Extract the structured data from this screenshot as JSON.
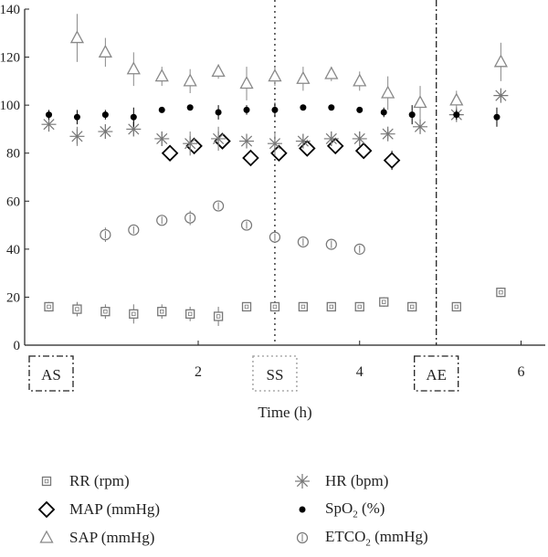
{
  "chart_data": {
    "type": "scatter",
    "xlabel": "Time (h)",
    "ylabel": "",
    "xlim": [
      -0.15,
      6.3
    ],
    "ylim": [
      0,
      140
    ],
    "y_ticks": [
      0,
      20,
      40,
      60,
      80,
      100,
      120,
      140
    ],
    "x_tick_labels": [
      {
        "x": 2,
        "label": "2"
      },
      {
        "x": 4,
        "label": "4"
      },
      {
        "x": 6,
        "label": "6"
      }
    ],
    "phase_markers": [
      {
        "label": "AS",
        "x": 0.0,
        "line": "none",
        "box": "dashdot"
      },
      {
        "label": "SS",
        "x": 2.95,
        "line": "dotted",
        "box": "dotted"
      },
      {
        "label": "AE",
        "x": 4.95,
        "line": "dashdot",
        "box": "dashdot"
      }
    ],
    "series": [
      {
        "name": "RR (rpm)",
        "name_main": "RR (rpm)",
        "name_sub": "",
        "name_tail": "",
        "marker": "square",
        "color": "#777777",
        "points": [
          {
            "x": 0.15,
            "y": 16,
            "err": 2
          },
          {
            "x": 0.5,
            "y": 15,
            "err": 3
          },
          {
            "x": 0.85,
            "y": 14,
            "err": 3
          },
          {
            "x": 1.2,
            "y": 13,
            "err": 4
          },
          {
            "x": 1.55,
            "y": 14,
            "err": 3
          },
          {
            "x": 1.9,
            "y": 13,
            "err": 3
          },
          {
            "x": 2.25,
            "y": 12,
            "err": 4
          },
          {
            "x": 2.6,
            "y": 16,
            "err": 1
          },
          {
            "x": 2.95,
            "y": 16,
            "err": 1
          },
          {
            "x": 3.3,
            "y": 16,
            "err": 1
          },
          {
            "x": 3.65,
            "y": 16,
            "err": 1
          },
          {
            "x": 4.0,
            "y": 16,
            "err": 1
          },
          {
            "x": 4.3,
            "y": 18,
            "err": 2
          },
          {
            "x": 4.65,
            "y": 16,
            "err": 2
          },
          {
            "x": 5.2,
            "y": 16,
            "err": 1
          },
          {
            "x": 5.75,
            "y": 22,
            "err": 2
          }
        ]
      },
      {
        "name": "MAP (mmHg)",
        "name_main": "MAP (mmHg)",
        "name_sub": "",
        "name_tail": "",
        "marker": "diamond",
        "color": "#000000",
        "points": [
          {
            "x": 1.65,
            "y": 80,
            "err": 0
          },
          {
            "x": 1.95,
            "y": 83,
            "err": 3
          },
          {
            "x": 2.3,
            "y": 85,
            "err": 3
          },
          {
            "x": 2.65,
            "y": 78,
            "err": 2
          },
          {
            "x": 3.0,
            "y": 80,
            "err": 2
          },
          {
            "x": 3.35,
            "y": 82,
            "err": 3
          },
          {
            "x": 3.7,
            "y": 83,
            "err": 2
          },
          {
            "x": 4.05,
            "y": 81,
            "err": 3
          },
          {
            "x": 4.4,
            "y": 77,
            "err": 4
          }
        ]
      },
      {
        "name": "SAP (mmHg)",
        "name_main": "SAP (mmHg)",
        "name_sub": "",
        "name_tail": "",
        "marker": "triangle",
        "color": "#888888",
        "points": [
          {
            "x": 0.5,
            "y": 128,
            "err": 10
          },
          {
            "x": 0.85,
            "y": 122,
            "err": 6
          },
          {
            "x": 1.2,
            "y": 115,
            "err": 7
          },
          {
            "x": 1.55,
            "y": 112,
            "err": 4
          },
          {
            "x": 1.9,
            "y": 110,
            "err": 5
          },
          {
            "x": 2.25,
            "y": 114,
            "err": 3
          },
          {
            "x": 2.6,
            "y": 109,
            "err": 7
          },
          {
            "x": 2.95,
            "y": 112,
            "err": 4
          },
          {
            "x": 3.3,
            "y": 111,
            "err": 5
          },
          {
            "x": 3.65,
            "y": 113,
            "err": 3
          },
          {
            "x": 4.0,
            "y": 110,
            "err": 4
          },
          {
            "x": 4.35,
            "y": 105,
            "err": 7
          },
          {
            "x": 4.75,
            "y": 101,
            "err": 7
          },
          {
            "x": 5.2,
            "y": 102,
            "err": 4
          },
          {
            "x": 5.75,
            "y": 118,
            "err": 8
          }
        ]
      },
      {
        "name": "HR (bpm)",
        "name_main": "HR (bpm)",
        "name_sub": "",
        "name_tail": "",
        "marker": "asterisk",
        "color": "#777777",
        "points": [
          {
            "x": 0.15,
            "y": 92,
            "err": 0
          },
          {
            "x": 0.5,
            "y": 87,
            "err": 4
          },
          {
            "x": 0.85,
            "y": 89,
            "err": 3
          },
          {
            "x": 1.2,
            "y": 90,
            "err": 3
          },
          {
            "x": 1.55,
            "y": 86,
            "err": 3
          },
          {
            "x": 1.9,
            "y": 84,
            "err": 5
          },
          {
            "x": 2.25,
            "y": 86,
            "err": 5
          },
          {
            "x": 2.6,
            "y": 85,
            "err": 3
          },
          {
            "x": 2.95,
            "y": 84,
            "err": 5
          },
          {
            "x": 3.3,
            "y": 85,
            "err": 3
          },
          {
            "x": 3.65,
            "y": 86,
            "err": 3
          },
          {
            "x": 4.0,
            "y": 86,
            "err": 3
          },
          {
            "x": 4.35,
            "y": 88,
            "err": 2
          },
          {
            "x": 4.75,
            "y": 91,
            "err": 3
          },
          {
            "x": 5.2,
            "y": 96,
            "err": 2
          },
          {
            "x": 5.75,
            "y": 104,
            "err": 2
          }
        ]
      },
      {
        "name": "SpO₂ (%)",
        "name_main": "SpO",
        "name_sub": "2",
        "name_tail": " (%)",
        "marker": "dot",
        "color": "#000000",
        "points": [
          {
            "x": 0.15,
            "y": 96,
            "err": 2
          },
          {
            "x": 0.5,
            "y": 95,
            "err": 3
          },
          {
            "x": 0.85,
            "y": 96,
            "err": 2
          },
          {
            "x": 1.2,
            "y": 95,
            "err": 4
          },
          {
            "x": 1.55,
            "y": 98,
            "err": 0
          },
          {
            "x": 1.9,
            "y": 99,
            "err": 0
          },
          {
            "x": 2.25,
            "y": 97,
            "err": 3
          },
          {
            "x": 2.6,
            "y": 98,
            "err": 2
          },
          {
            "x": 2.95,
            "y": 98,
            "err": 3
          },
          {
            "x": 3.3,
            "y": 99,
            "err": 0
          },
          {
            "x": 3.65,
            "y": 99,
            "err": 0
          },
          {
            "x": 4.0,
            "y": 98,
            "err": 0
          },
          {
            "x": 4.3,
            "y": 97,
            "err": 2
          },
          {
            "x": 4.65,
            "y": 96,
            "err": 4
          },
          {
            "x": 5.2,
            "y": 96,
            "err": 2
          },
          {
            "x": 5.7,
            "y": 95,
            "err": 4
          }
        ]
      },
      {
        "name": "ETCO₂ (mmHg)",
        "name_main": "ETCO",
        "name_sub": "2",
        "name_tail": " (mmHg)",
        "marker": "circle",
        "color": "#777777",
        "points": [
          {
            "x": 0.85,
            "y": 46,
            "err": 3
          },
          {
            "x": 1.2,
            "y": 48,
            "err": 2
          },
          {
            "x": 1.55,
            "y": 52,
            "err": 2
          },
          {
            "x": 1.9,
            "y": 53,
            "err": 3
          },
          {
            "x": 2.25,
            "y": 58,
            "err": 2
          },
          {
            "x": 2.6,
            "y": 50,
            "err": 2
          },
          {
            "x": 2.95,
            "y": 45,
            "err": 2
          },
          {
            "x": 3.3,
            "y": 43,
            "err": 1
          },
          {
            "x": 3.65,
            "y": 42,
            "err": 1
          },
          {
            "x": 4.0,
            "y": 40,
            "err": 1
          }
        ]
      }
    ]
  }
}
